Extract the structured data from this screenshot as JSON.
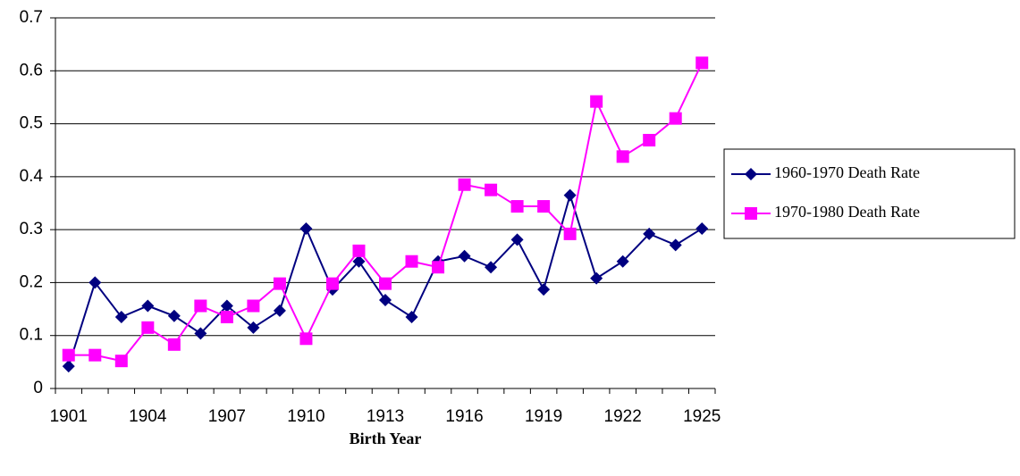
{
  "chart_data": {
    "type": "line",
    "x_label": "Birth Year",
    "categories": [
      "1901",
      null,
      null,
      "1904",
      null,
      null,
      "1907",
      null,
      null,
      "1910",
      null,
      null,
      "1913",
      null,
      null,
      "1916",
      null,
      null,
      "1919",
      null,
      null,
      "1922",
      null,
      null,
      "1925"
    ],
    "series": [
      {
        "name": "1960-1970 Death Rate",
        "color": "#000080",
        "marker": "diamond",
        "values": [
          0.042,
          0.2,
          0.135,
          0.156,
          0.137,
          0.104,
          0.156,
          0.115,
          0.147,
          0.302,
          0.187,
          0.24,
          0.167,
          0.135,
          0.24,
          0.25,
          0.229,
          0.281,
          0.187,
          0.365,
          0.208,
          0.24,
          0.292,
          0.271,
          0.302
        ]
      },
      {
        "name": "1970-1980 Death Rate",
        "color": "#ff00ff",
        "marker": "square",
        "values": [
          0.063,
          0.063,
          0.052,
          0.115,
          0.083,
          0.156,
          0.135,
          0.156,
          0.198,
          0.094,
          0.198,
          0.26,
          0.198,
          0.24,
          0.229,
          0.385,
          0.375,
          0.344,
          0.344,
          0.292,
          0.542,
          0.438,
          0.469,
          0.51,
          0.615
        ]
      }
    ],
    "ylim": [
      0,
      0.7
    ],
    "yticks": [
      0,
      0.1,
      0.2,
      0.3,
      0.4,
      0.5,
      0.6,
      0.7
    ],
    "grid": true,
    "legend": "right"
  }
}
